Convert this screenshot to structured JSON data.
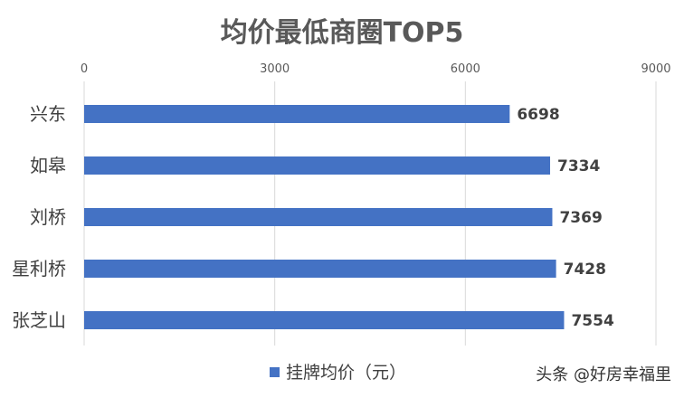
{
  "chart_data": {
    "type": "bar",
    "orientation": "horizontal",
    "title": "均价最低商圈TOP5",
    "categories": [
      "兴东",
      "如皋",
      "刘桥",
      "星利桥",
      "张芝山"
    ],
    "series": [
      {
        "name": "挂牌均价（元）",
        "values": [
          6698,
          7334,
          7369,
          7428,
          7554
        ],
        "color": "#4472C4"
      }
    ],
    "xlim": [
      0,
      9000
    ],
    "x_ticks": [
      0,
      3000,
      6000,
      9000
    ],
    "x_axis_position": "top",
    "grid": true,
    "legend_position": "bottom",
    "data_labels": true
  },
  "watermark": "头条 @好房幸福里"
}
